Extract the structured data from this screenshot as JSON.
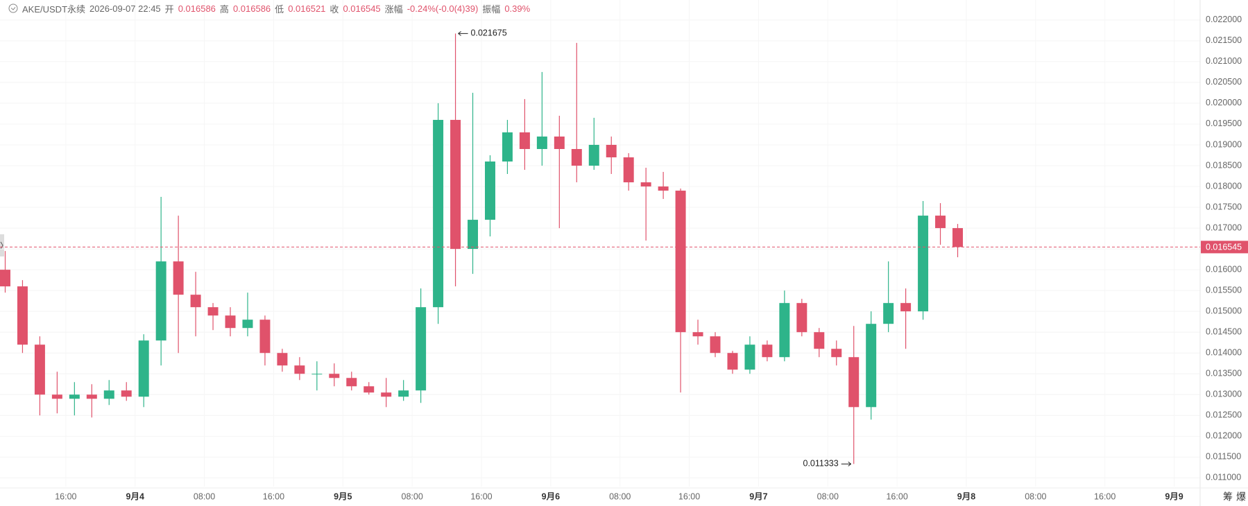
{
  "header": {
    "symbol": "AKE/USDT永续",
    "time": "2026-09-07 22:45",
    "fields": [
      {
        "label": "开",
        "value": "0.016586"
      },
      {
        "label": "高",
        "value": "0.016586"
      },
      {
        "label": "低",
        "value": "0.016521"
      },
      {
        "label": "收",
        "value": "0.016545"
      },
      {
        "label": "涨幅",
        "value": "-0.24%(-0.0(4)39)"
      },
      {
        "label": "振幅",
        "value": "0.39%"
      }
    ]
  },
  "toolbar": [
    "筹",
    "爆"
  ],
  "chart_data": {
    "type": "candlestick",
    "x": [
      9,
      11,
      13,
      15,
      17,
      19,
      21,
      23,
      25,
      27,
      29,
      31,
      33,
      35,
      37,
      39,
      41,
      43,
      45,
      47,
      49,
      51,
      53,
      55,
      57,
      59,
      61,
      63,
      65,
      67,
      69,
      71,
      73,
      75,
      77,
      79,
      81,
      83,
      85,
      87,
      89,
      91,
      93,
      95,
      97,
      99,
      101,
      103,
      105,
      107,
      109,
      111,
      113,
      115,
      117,
      119
    ],
    "open": [
      0.016,
      0.0156,
      0.0142,
      0.013,
      0.0129,
      0.013,
      0.0129,
      0.0131,
      0.01295,
      0.0143,
      0.0162,
      0.0154,
      0.0151,
      0.0149,
      0.0146,
      0.0148,
      0.014,
      0.0137,
      0.0135,
      0.0135,
      0.0134,
      0.0132,
      0.01305,
      0.01295,
      0.0131,
      0.0151,
      0.0196,
      0.0165,
      0.0172,
      0.0186,
      0.0193,
      0.0189,
      0.0192,
      0.0189,
      0.0185,
      0.019,
      0.0187,
      0.0181,
      0.018,
      0.0179,
      0.0145,
      0.0144,
      0.014,
      0.0136,
      0.0142,
      0.0139,
      0.0152,
      0.0145,
      0.0141,
      0.0139,
      0.0127,
      0.0147,
      0.0152,
      0.015,
      0.0173,
      0.017
    ],
    "high": [
      0.01645,
      0.01575,
      0.0144,
      0.01355,
      0.0133,
      0.01325,
      0.01335,
      0.0133,
      0.01445,
      0.01775,
      0.0173,
      0.01595,
      0.0152,
      0.0151,
      0.01545,
      0.0149,
      0.0141,
      0.0139,
      0.0138,
      0.01375,
      0.01355,
      0.0133,
      0.0134,
      0.01335,
      0.01555,
      0.02,
      0.021675,
      0.02025,
      0.01875,
      0.0196,
      0.0201,
      0.02075,
      0.0197,
      0.02145,
      0.01965,
      0.0192,
      0.0188,
      0.01845,
      0.01835,
      0.01795,
      0.0148,
      0.0145,
      0.01405,
      0.0144,
      0.0143,
      0.0155,
      0.0153,
      0.0146,
      0.0143,
      0.01465,
      0.015,
      0.0162,
      0.01555,
      0.01765,
      0.0176,
      0.0171
    ],
    "low": [
      0.01545,
      0.014,
      0.0125,
      0.01255,
      0.0125,
      0.01245,
      0.01275,
      0.01285,
      0.0127,
      0.0137,
      0.014,
      0.0144,
      0.01455,
      0.0144,
      0.0144,
      0.0137,
      0.01355,
      0.01335,
      0.0131,
      0.0132,
      0.0131,
      0.013,
      0.0127,
      0.01285,
      0.0128,
      0.0147,
      0.0156,
      0.0159,
      0.0168,
      0.0183,
      0.0184,
      0.0185,
      0.017,
      0.0181,
      0.0184,
      0.0183,
      0.0179,
      0.0167,
      0.0177,
      0.01305,
      0.0142,
      0.0139,
      0.0135,
      0.0135,
      0.0138,
      0.0138,
      0.0144,
      0.0139,
      0.0137,
      0.011333,
      0.0124,
      0.0145,
      0.0141,
      0.0148,
      0.0166,
      0.0163
    ],
    "close": [
      0.0156,
      0.0142,
      0.013,
      0.0129,
      0.013,
      0.0129,
      0.0131,
      0.01295,
      0.0143,
      0.0162,
      0.0154,
      0.0151,
      0.0149,
      0.0146,
      0.0148,
      0.014,
      0.0137,
      0.0135,
      0.0135,
      0.0134,
      0.0132,
      0.01305,
      0.01295,
      0.0131,
      0.0151,
      0.0196,
      0.0165,
      0.0172,
      0.0186,
      0.0193,
      0.0189,
      0.0192,
      0.0189,
      0.0185,
      0.019,
      0.0187,
      0.0181,
      0.018,
      0.0179,
      0.0145,
      0.0144,
      0.014,
      0.0136,
      0.0142,
      0.0139,
      0.0152,
      0.0145,
      0.0141,
      0.0139,
      0.0127,
      0.0147,
      0.0152,
      0.015,
      0.0173,
      0.017,
      0.016545
    ],
    "up_color": "#2eb48a",
    "down_color": "#e0526b",
    "last_price": 0.016545,
    "last_price_color": "#e0526b",
    "annotations": [
      0.021675,
      0.011333
    ],
    "xlim": [
      8.4,
      147
    ],
    "xticks": [
      {
        "value": 16,
        "label": "16:00"
      },
      {
        "value": 24,
        "label": "9月4"
      },
      {
        "value": 32,
        "label": "08:00"
      },
      {
        "value": 40,
        "label": "16:00"
      },
      {
        "value": 48,
        "label": "9月5"
      },
      {
        "value": 56,
        "label": "08:00"
      },
      {
        "value": 64,
        "label": "16:00"
      },
      {
        "value": 72,
        "label": "9月6"
      },
      {
        "value": 80,
        "label": "08:00"
      },
      {
        "value": 88,
        "label": "16:00"
      },
      {
        "value": 96,
        "label": "9月7"
      },
      {
        "value": 104,
        "label": "08:00"
      },
      {
        "value": 112,
        "label": "16:00"
      },
      {
        "value": 120,
        "label": "9月8"
      },
      {
        "value": 128,
        "label": "08:00"
      },
      {
        "value": 136,
        "label": "16:00"
      },
      {
        "value": 144,
        "label": "9月9"
      }
    ],
    "ylim": [
      0.01079,
      0.02248
    ],
    "yticks": [
      {
        "value": 0.011,
        "label": "0.011000"
      },
      {
        "value": 0.0115,
        "label": "0.011500"
      },
      {
        "value": 0.012,
        "label": "0.012000"
      },
      {
        "value": 0.0125,
        "label": "0.012500"
      },
      {
        "value": 0.013,
        "label": "0.013000"
      },
      {
        "value": 0.0135,
        "label": "0.013500"
      },
      {
        "value": 0.014,
        "label": "0.014000"
      },
      {
        "value": 0.0145,
        "label": "0.014500"
      },
      {
        "value": 0.015,
        "label": "0.015000"
      },
      {
        "value": 0.0155,
        "label": "0.015500"
      },
      {
        "value": 0.016,
        "label": "0.016000"
      },
      {
        "value": 0.0165,
        "label": "0.016500"
      },
      {
        "value": 0.017,
        "label": "0.017000"
      },
      {
        "value": 0.0175,
        "label": "0.017500"
      },
      {
        "value": 0.018,
        "label": "0.018000"
      },
      {
        "value": 0.0185,
        "label": "0.018500"
      },
      {
        "value": 0.019,
        "label": "0.019000"
      },
      {
        "value": 0.0195,
        "label": "0.019500"
      },
      {
        "value": 0.02,
        "label": "0.020000"
      },
      {
        "value": 0.0205,
        "label": "0.020500"
      },
      {
        "value": 0.021,
        "label": "0.021000"
      },
      {
        "value": 0.0215,
        "label": "0.021500"
      },
      {
        "value": 0.022,
        "label": "0.022000"
      }
    ],
    "grid": true
  }
}
